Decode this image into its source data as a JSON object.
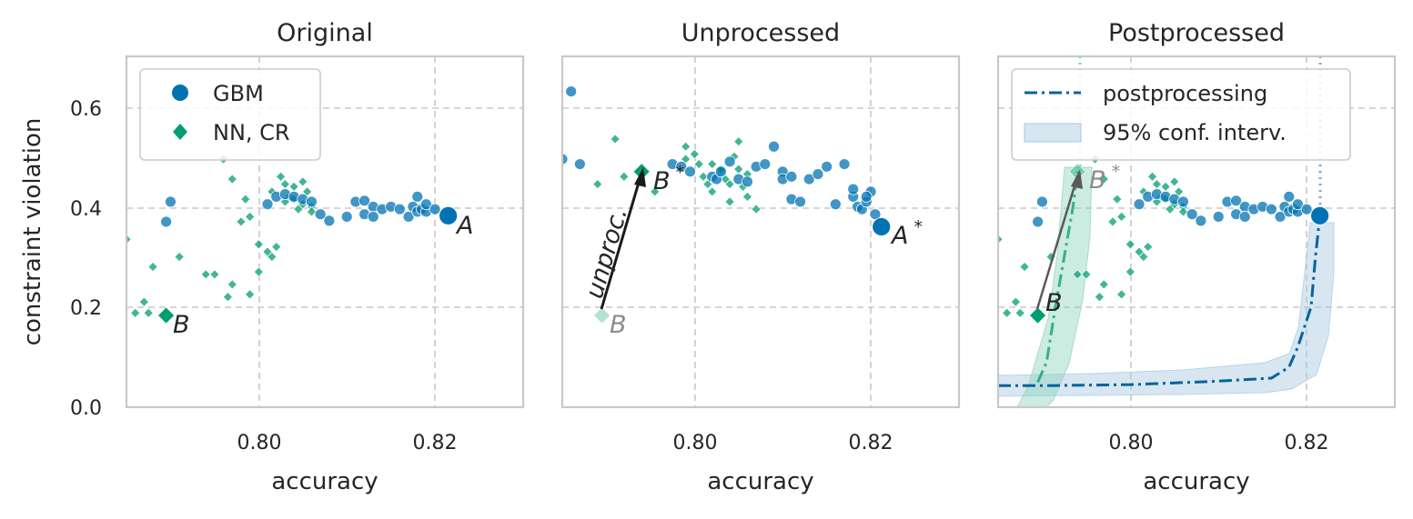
{
  "colors": {
    "gbm": "#0173b2",
    "nn": "#029e73",
    "pp_gbm": "#04639a",
    "text": "#262626",
    "gray": "#8c8c8c"
  },
  "chart_data": [
    {
      "type": "scatter",
      "title": "Original",
      "xlabel": "accuracy",
      "ylabel": "constraint violation",
      "xlim": [
        0.785,
        0.83
      ],
      "ylim": [
        0.0,
        0.7
      ],
      "xticks": [
        "0.80",
        "0.82"
      ],
      "yticks": [
        "0.0",
        "0.2",
        "0.4",
        "0.6"
      ],
      "legend": {
        "location": "top-left",
        "entries": [
          "GBM",
          "NN, CR"
        ]
      },
      "series": [
        {
          "name": "GBM",
          "marker": "circle",
          "points": [
            [
              0.79,
              0.41
            ],
            [
              0.7895,
              0.37
            ],
            [
              0.801,
              0.405
            ],
            [
              0.802,
              0.42
            ],
            [
              0.803,
              0.425
            ],
            [
              0.804,
              0.42
            ],
            [
              0.805,
              0.415
            ],
            [
              0.806,
              0.41
            ],
            [
              0.807,
              0.385
            ],
            [
              0.808,
              0.372
            ],
            [
              0.81,
              0.38
            ],
            [
              0.811,
              0.41
            ],
            [
              0.812,
              0.412
            ],
            [
              0.813,
              0.4
            ],
            [
              0.812,
              0.385
            ],
            [
              0.813,
              0.38
            ],
            [
              0.814,
              0.395
            ],
            [
              0.815,
              0.4
            ],
            [
              0.816,
              0.395
            ],
            [
              0.817,
              0.38
            ],
            [
              0.8175,
              0.4
            ],
            [
              0.818,
              0.39
            ],
            [
              0.818,
              0.42
            ],
            [
              0.8185,
              0.395
            ],
            [
              0.819,
              0.39
            ],
            [
              0.819,
              0.405
            ],
            [
              0.82,
              0.395
            ]
          ]
        },
        {
          "name": "NN, CR",
          "marker": "diamond",
          "points": [
            [
              0.785,
              0.335
            ],
            [
              0.786,
              0.188
            ],
            [
              0.787,
              0.21
            ],
            [
              0.7875,
              0.188
            ],
            [
              0.788,
              0.28
            ],
            [
              0.791,
              0.3
            ],
            [
              0.794,
              0.265
            ],
            [
              0.795,
              0.265
            ],
            [
              0.796,
              0.495
            ],
            [
              0.7965,
              0.22
            ],
            [
              0.797,
              0.455
            ],
            [
              0.797,
              0.245
            ],
            [
              0.798,
              0.37
            ],
            [
              0.7985,
              0.415
            ],
            [
              0.799,
              0.38
            ],
            [
              0.799,
              0.225
            ],
            [
              0.8,
              0.325
            ],
            [
              0.8,
              0.27
            ],
            [
              0.801,
              0.31
            ],
            [
              0.8015,
              0.3
            ],
            [
              0.8015,
              0.43
            ],
            [
              0.802,
              0.32
            ],
            [
              0.8025,
              0.46
            ],
            [
              0.803,
              0.445
            ],
            [
              0.8035,
              0.42
            ],
            [
              0.804,
              0.415
            ],
            [
              0.804,
              0.44
            ],
            [
              0.8045,
              0.395
            ],
            [
              0.805,
              0.45
            ],
            [
              0.805,
              0.405
            ],
            [
              0.8055,
              0.43
            ],
            [
              0.806,
              0.4
            ],
            [
              0.806,
              0.39
            ],
            [
              0.803,
              0.41
            ]
          ]
        },
        {
          "name": "highlighted",
          "points": [
            [
              0.8215,
              0.382
            ],
            [
              0.7895,
              0.183
            ]
          ]
        }
      ],
      "annotations": [
        {
          "text": "A",
          "x": 0.8215,
          "y": 0.382
        },
        {
          "text": "B",
          "x": 0.7895,
          "y": 0.183
        }
      ]
    },
    {
      "type": "scatter",
      "title": "Unprocessed",
      "xlabel": "accuracy",
      "xlim": [
        0.785,
        0.83
      ],
      "ylim": [
        0.0,
        0.7
      ],
      "xticks": [
        "0.80",
        "0.82"
      ],
      "series": [
        {
          "name": "GBM",
          "marker": "circle",
          "points": [
            [
              0.786,
              0.63
            ],
            [
              0.785,
              0.495
            ],
            [
              0.787,
              0.485
            ],
            [
              0.7975,
              0.485
            ],
            [
              0.7985,
              0.48
            ],
            [
              0.7995,
              0.47
            ],
            [
              0.802,
              0.46
            ],
            [
              0.8025,
              0.455
            ],
            [
              0.803,
              0.47
            ],
            [
              0.804,
              0.49
            ],
            [
              0.805,
              0.455
            ],
            [
              0.806,
              0.45
            ],
            [
              0.807,
              0.48
            ],
            [
              0.808,
              0.485
            ],
            [
              0.809,
              0.52
            ],
            [
              0.81,
              0.47
            ],
            [
              0.81,
              0.455
            ],
            [
              0.811,
              0.46
            ],
            [
              0.811,
              0.415
            ],
            [
              0.812,
              0.41
            ],
            [
              0.813,
              0.455
            ],
            [
              0.814,
              0.465
            ],
            [
              0.815,
              0.48
            ],
            [
              0.816,
              0.405
            ],
            [
              0.817,
              0.485
            ],
            [
              0.818,
              0.42
            ],
            [
              0.8185,
              0.4
            ],
            [
              0.819,
              0.395
            ],
            [
              0.8195,
              0.41
            ],
            [
              0.82,
              0.43
            ],
            [
              0.8205,
              0.385
            ],
            [
              0.818,
              0.435
            ],
            [
              0.8195,
              0.42
            ]
          ]
        },
        {
          "name": "NN, CR",
          "marker": "diamond",
          "points": [
            [
              0.789,
              0.445
            ],
            [
              0.791,
              0.535
            ],
            [
              0.792,
              0.46
            ],
            [
              0.7955,
              0.43
            ],
            [
              0.799,
              0.52
            ],
            [
              0.799,
              0.495
            ],
            [
              0.8,
              0.505
            ],
            [
              0.8005,
              0.485
            ],
            [
              0.801,
              0.46
            ],
            [
              0.8015,
              0.445
            ],
            [
              0.802,
              0.485
            ],
            [
              0.803,
              0.47
            ],
            [
              0.8035,
              0.455
            ],
            [
              0.804,
              0.445
            ],
            [
              0.8045,
              0.5
            ],
            [
              0.805,
              0.53
            ],
            [
              0.805,
              0.475
            ],
            [
              0.8055,
              0.44
            ],
            [
              0.806,
              0.465
            ],
            [
              0.806,
              0.42
            ],
            [
              0.807,
              0.395
            ],
            [
              0.804,
              0.41
            ],
            [
              0.803,
              0.475
            ],
            [
              0.802,
              0.43
            ]
          ]
        },
        {
          "name": "highlighted",
          "points": [
            [
              0.8212,
              0.36
            ],
            [
              0.794,
              0.47
            ]
          ]
        }
      ],
      "annotations": [
        {
          "text": "A*",
          "x": 0.8212,
          "y": 0.36
        },
        {
          "text": "B*",
          "x": 0.794,
          "y": 0.47
        },
        {
          "text": "B",
          "x": 0.7895,
          "y": 0.183
        },
        {
          "text": "unproc.",
          "from": [
            0.7895,
            0.19
          ],
          "to": [
            0.794,
            0.462
          ]
        }
      ]
    },
    {
      "type": "scatter",
      "title": "Postprocessed",
      "xlabel": "accuracy",
      "xlim": [
        0.785,
        0.83
      ],
      "ylim": [
        0.0,
        0.7
      ],
      "xticks": [
        "0.80",
        "0.82"
      ],
      "legend": {
        "location": "top-left",
        "entries": [
          "postprocessing",
          "95% conf. interv."
        ]
      },
      "postprocessing_gbm": [
        [
          0.785,
          0.043
        ],
        [
          0.79,
          0.043
        ],
        [
          0.8,
          0.045
        ],
        [
          0.81,
          0.052
        ],
        [
          0.816,
          0.058
        ],
        [
          0.818,
          0.08
        ],
        [
          0.819,
          0.12
        ],
        [
          0.8205,
          0.2
        ],
        [
          0.821,
          0.3
        ],
        [
          0.8215,
          0.382
        ]
      ],
      "postprocessing_nn": [
        [
          0.7895,
          0.05
        ],
        [
          0.7905,
          0.09
        ],
        [
          0.7915,
          0.2
        ],
        [
          0.7925,
          0.3
        ],
        [
          0.7935,
          0.4
        ],
        [
          0.794,
          0.47
        ]
      ],
      "annotations": [
        {
          "text": "B",
          "x": 0.7895,
          "y": 0.183
        },
        {
          "text": "B*",
          "x": 0.794,
          "y": 0.47
        }
      ]
    }
  ]
}
